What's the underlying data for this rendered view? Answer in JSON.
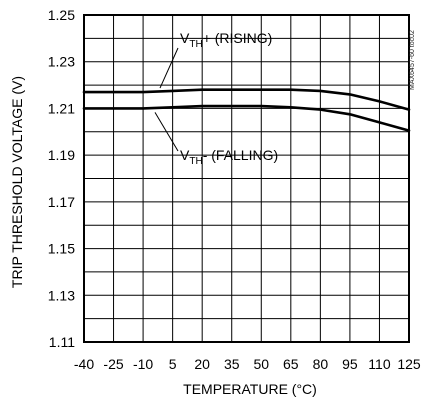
{
  "chart_data": {
    "type": "line",
    "title": "",
    "xlabel": "TEMPERATURE (°C)",
    "ylabel": "TRIP THRESHOLD VOLTAGE (V)",
    "xlim": [
      -40,
      125
    ],
    "ylim": [
      1.11,
      1.25
    ],
    "x_ticks": [
      "-40",
      "-25",
      "-10",
      "5",
      "20",
      "35",
      "50",
      "65",
      "80",
      "95",
      "110",
      "125"
    ],
    "y_ticks": [
      "1.25",
      "1.23",
      "1.21",
      "1.19",
      "1.17",
      "1.15",
      "1.13",
      "1.11"
    ],
    "grid": true,
    "series": [
      {
        "name": "VTH+ (RISING)",
        "x": [
          -40,
          -25,
          -10,
          5,
          20,
          35,
          50,
          65,
          80,
          95,
          110,
          125
        ],
        "y": [
          1.217,
          1.217,
          1.217,
          1.2175,
          1.218,
          1.218,
          1.218,
          1.218,
          1.2175,
          1.216,
          1.213,
          1.2095
        ]
      },
      {
        "name": "VTH- (FALLING)",
        "x": [
          -40,
          -25,
          -10,
          5,
          20,
          35,
          50,
          65,
          80,
          95,
          110,
          125
        ],
        "y": [
          1.21,
          1.21,
          1.21,
          1.2105,
          1.211,
          1.211,
          1.211,
          1.2105,
          1.2095,
          1.2075,
          1.204,
          1.2005
        ]
      }
    ],
    "annotations": [
      {
        "main": "V",
        "sub": "TH",
        "rest": "+ (RISING)"
      },
      {
        "main": "V",
        "sub": "TH",
        "rest": "- (FALLING)"
      }
    ],
    "watermark": "MAX6457-60 toc02"
  }
}
